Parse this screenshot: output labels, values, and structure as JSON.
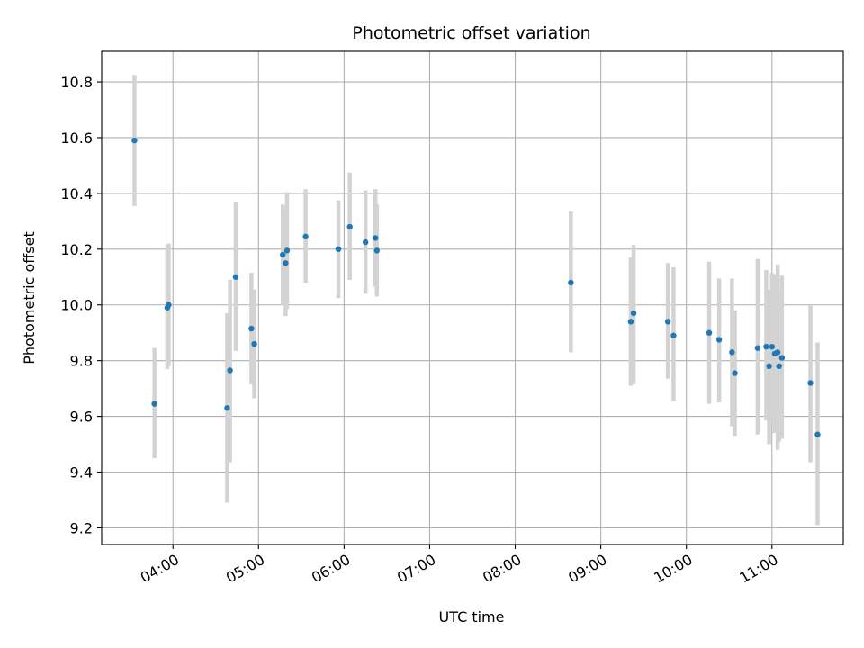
{
  "chart_data": {
    "type": "scatter",
    "title": "Photometric offset variation",
    "xlabel": "UTC time",
    "ylabel": "Photometric offset",
    "x_tick_labels": [
      "04:00",
      "05:00",
      "06:00",
      "07:00",
      "08:00",
      "09:00",
      "10:00",
      "11:00"
    ],
    "x_ticks": [
      "04:00",
      "05:00",
      "06:00",
      "07:00",
      "08:00",
      "09:00",
      "10:00",
      "11:00"
    ],
    "xlim": [
      "03:10",
      "11:50"
    ],
    "y_ticks": [
      9.2,
      9.4,
      9.6,
      9.8,
      10.0,
      10.2,
      10.4,
      10.6,
      10.8
    ],
    "y_tick_labels": [
      "9.2",
      "9.4",
      "9.6",
      "9.8",
      "10.0",
      "10.2",
      "10.4",
      "10.6",
      "10.8"
    ],
    "ylim": [
      9.14,
      10.91
    ],
    "grid": true,
    "colors": {
      "points": "#1f77b4",
      "error_bars": "#d3d3d3",
      "grid": "#b0b0b0"
    },
    "points": [
      {
        "x": "03:33",
        "y": 10.59,
        "lo": 10.355,
        "hi": 10.825
      },
      {
        "x": "03:47",
        "y": 9.645,
        "lo": 9.45,
        "hi": 9.845
      },
      {
        "x": "03:56",
        "y": 9.99,
        "lo": 9.77,
        "hi": 10.215
      },
      {
        "x": "03:57",
        "y": 10.0,
        "lo": 9.78,
        "hi": 10.22
      },
      {
        "x": "04:38",
        "y": 9.63,
        "lo": 9.29,
        "hi": 9.97
      },
      {
        "x": "04:40",
        "y": 9.765,
        "lo": 9.435,
        "hi": 10.09
      },
      {
        "x": "04:44",
        "y": 10.1,
        "lo": 9.835,
        "hi": 10.37
      },
      {
        "x": "04:55",
        "y": 9.915,
        "lo": 9.715,
        "hi": 10.115
      },
      {
        "x": "04:57",
        "y": 9.86,
        "lo": 9.665,
        "hi": 10.055
      },
      {
        "x": "05:17",
        "y": 10.18,
        "lo": 10.0,
        "hi": 10.36
      },
      {
        "x": "05:19",
        "y": 10.15,
        "lo": 9.96,
        "hi": 10.34
      },
      {
        "x": "05:20",
        "y": 10.195,
        "lo": 9.985,
        "hi": 10.405
      },
      {
        "x": "05:33",
        "y": 10.245,
        "lo": 10.08,
        "hi": 10.415
      },
      {
        "x": "05:56",
        "y": 10.2,
        "lo": 10.025,
        "hi": 10.375
      },
      {
        "x": "06:04",
        "y": 10.28,
        "lo": 10.09,
        "hi": 10.475
      },
      {
        "x": "06:15",
        "y": 10.225,
        "lo": 10.04,
        "hi": 10.41
      },
      {
        "x": "06:22",
        "y": 10.24,
        "lo": 10.065,
        "hi": 10.415
      },
      {
        "x": "06:23",
        "y": 10.195,
        "lo": 10.03,
        "hi": 10.36
      },
      {
        "x": "08:39",
        "y": 10.08,
        "lo": 9.83,
        "hi": 10.335
      },
      {
        "x": "09:21",
        "y": 9.94,
        "lo": 9.71,
        "hi": 10.17
      },
      {
        "x": "09:23",
        "y": 9.97,
        "lo": 9.715,
        "hi": 10.215
      },
      {
        "x": "09:47",
        "y": 9.94,
        "lo": 9.735,
        "hi": 10.15
      },
      {
        "x": "09:51",
        "y": 9.89,
        "lo": 9.655,
        "hi": 10.135
      },
      {
        "x": "10:16",
        "y": 9.9,
        "lo": 9.645,
        "hi": 10.155
      },
      {
        "x": "10:23",
        "y": 9.875,
        "lo": 9.65,
        "hi": 10.095
      },
      {
        "x": "10:32",
        "y": 9.83,
        "lo": 9.565,
        "hi": 10.095
      },
      {
        "x": "10:34",
        "y": 9.755,
        "lo": 9.53,
        "hi": 9.98
      },
      {
        "x": "10:50",
        "y": 9.845,
        "lo": 9.535,
        "hi": 10.165
      },
      {
        "x": "10:56",
        "y": 9.85,
        "lo": 9.585,
        "hi": 10.125
      },
      {
        "x": "10:58",
        "y": 9.78,
        "lo": 9.5,
        "hi": 10.055
      },
      {
        "x": "11:00",
        "y": 9.85,
        "lo": 9.585,
        "hi": 10.115
      },
      {
        "x": "11:02",
        "y": 9.825,
        "lo": 9.54,
        "hi": 10.11
      },
      {
        "x": "11:04",
        "y": 9.83,
        "lo": 9.48,
        "hi": 10.145
      },
      {
        "x": "11:05",
        "y": 9.78,
        "lo": 9.51,
        "hi": 10.05
      },
      {
        "x": "11:07",
        "y": 9.81,
        "lo": 9.52,
        "hi": 10.105
      },
      {
        "x": "11:27",
        "y": 9.72,
        "lo": 9.435,
        "hi": 10.0
      },
      {
        "x": "11:32",
        "y": 9.535,
        "lo": 9.21,
        "hi": 9.865
      }
    ]
  }
}
